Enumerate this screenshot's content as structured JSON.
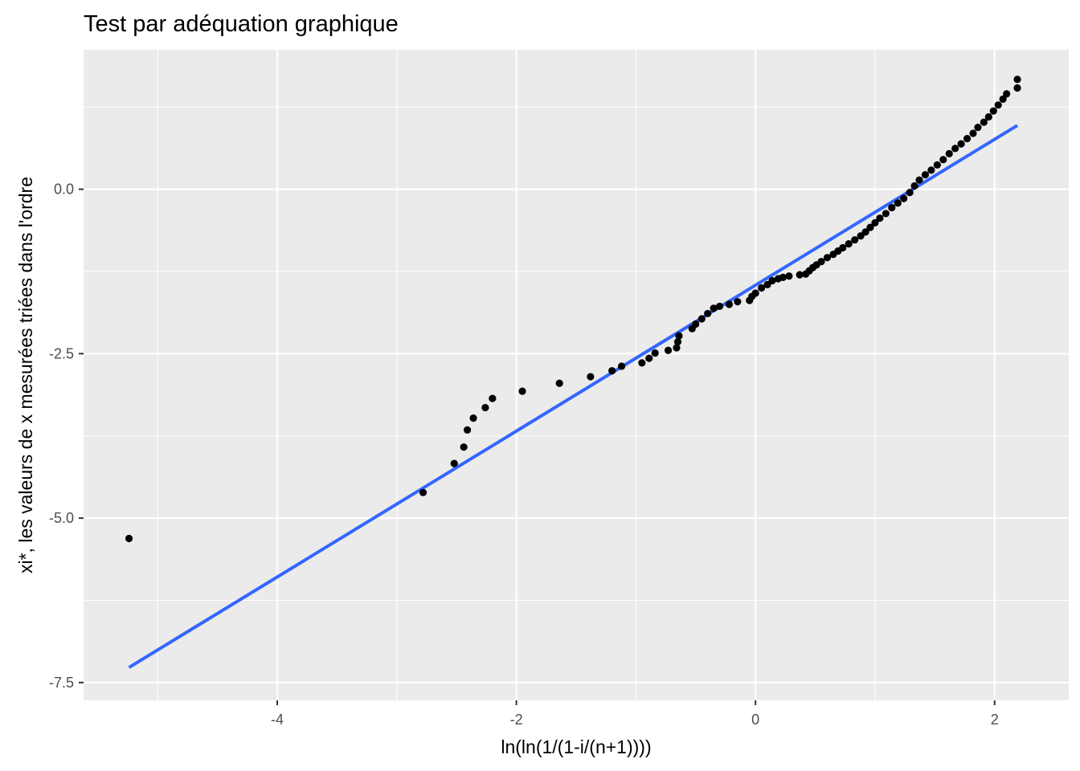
{
  "chart_data": {
    "type": "scatter",
    "title": "Test par adéquation graphique",
    "xlabel": "ln(ln(1/(1-i/(n+1))))",
    "ylabel": "xi*, les valeurs de x mesurées triées dans l'ordre",
    "xlim": [
      -5.62,
      2.62
    ],
    "ylim": [
      -7.77,
      2.12
    ],
    "x_ticks": [
      {
        "value": -4,
        "label": "-4"
      },
      {
        "value": -2,
        "label": "-2"
      },
      {
        "value": 0,
        "label": "0"
      },
      {
        "value": 2,
        "label": "2"
      }
    ],
    "y_ticks": [
      {
        "value": 0.0,
        "label": "0.0"
      },
      {
        "value": -2.5,
        "label": "-2.5"
      },
      {
        "value": -5.0,
        "label": "-5.0"
      },
      {
        "value": -7.5,
        "label": "-7.5"
      }
    ],
    "grid": true,
    "background": "#EBEBEB",
    "point_color": "#000000",
    "line_color": "#3366FF",
    "fit_line": {
      "x": [
        -5.24,
        2.19
      ],
      "y": [
        -7.27,
        0.97
      ]
    },
    "points": [
      [
        -5.24,
        -5.31
      ],
      [
        -2.78,
        -4.61
      ],
      [
        -2.52,
        -4.17
      ],
      [
        -2.44,
        -3.92
      ],
      [
        -2.41,
        -3.66
      ],
      [
        -2.36,
        -3.48
      ],
      [
        -2.26,
        -3.32
      ],
      [
        -2.2,
        -3.18
      ],
      [
        -1.95,
        -3.07
      ],
      [
        -1.64,
        -2.95
      ],
      [
        -1.38,
        -2.85
      ],
      [
        -1.2,
        -2.76
      ],
      [
        -1.12,
        -2.69
      ],
      [
        -0.95,
        -2.64
      ],
      [
        -0.89,
        -2.57
      ],
      [
        -0.84,
        -2.49
      ],
      [
        -0.73,
        -2.45
      ],
      [
        -0.66,
        -2.41
      ],
      [
        -0.65,
        -2.32
      ],
      [
        -0.64,
        -2.23
      ],
      [
        -0.53,
        -2.12
      ],
      [
        -0.5,
        -2.05
      ],
      [
        -0.45,
        -1.97
      ],
      [
        -0.4,
        -1.89
      ],
      [
        -0.35,
        -1.81
      ],
      [
        -0.3,
        -1.78
      ],
      [
        -0.22,
        -1.75
      ],
      [
        -0.15,
        -1.71
      ],
      [
        -0.05,
        -1.69
      ],
      [
        -0.03,
        -1.63
      ],
      [
        0.0,
        -1.58
      ],
      [
        0.05,
        -1.5
      ],
      [
        0.1,
        -1.45
      ],
      [
        0.14,
        -1.39
      ],
      [
        0.19,
        -1.36
      ],
      [
        0.23,
        -1.34
      ],
      [
        0.28,
        -1.32
      ],
      [
        0.37,
        -1.3
      ],
      [
        0.42,
        -1.29
      ],
      [
        0.45,
        -1.24
      ],
      [
        0.48,
        -1.19
      ],
      [
        0.51,
        -1.15
      ],
      [
        0.55,
        -1.1
      ],
      [
        0.6,
        -1.04
      ],
      [
        0.65,
        -0.99
      ],
      [
        0.69,
        -0.94
      ],
      [
        0.73,
        -0.89
      ],
      [
        0.78,
        -0.83
      ],
      [
        0.83,
        -0.77
      ],
      [
        0.88,
        -0.71
      ],
      [
        0.92,
        -0.65
      ],
      [
        0.96,
        -0.58
      ],
      [
        1.0,
        -0.51
      ],
      [
        1.04,
        -0.44
      ],
      [
        1.09,
        -0.37
      ],
      [
        1.14,
        -0.28
      ],
      [
        1.19,
        -0.21
      ],
      [
        1.24,
        -0.14
      ],
      [
        1.29,
        -0.05
      ],
      [
        1.33,
        0.05
      ],
      [
        1.37,
        0.14
      ],
      [
        1.42,
        0.22
      ],
      [
        1.47,
        0.29
      ],
      [
        1.52,
        0.37
      ],
      [
        1.57,
        0.45
      ],
      [
        1.62,
        0.54
      ],
      [
        1.67,
        0.62
      ],
      [
        1.72,
        0.69
      ],
      [
        1.77,
        0.77
      ],
      [
        1.82,
        0.85
      ],
      [
        1.86,
        0.94
      ],
      [
        1.91,
        1.02
      ],
      [
        1.95,
        1.1
      ],
      [
        1.99,
        1.19
      ],
      [
        2.03,
        1.28
      ],
      [
        2.07,
        1.37
      ],
      [
        2.1,
        1.45
      ],
      [
        2.19,
        1.54
      ],
      [
        2.19,
        1.67
      ]
    ]
  }
}
